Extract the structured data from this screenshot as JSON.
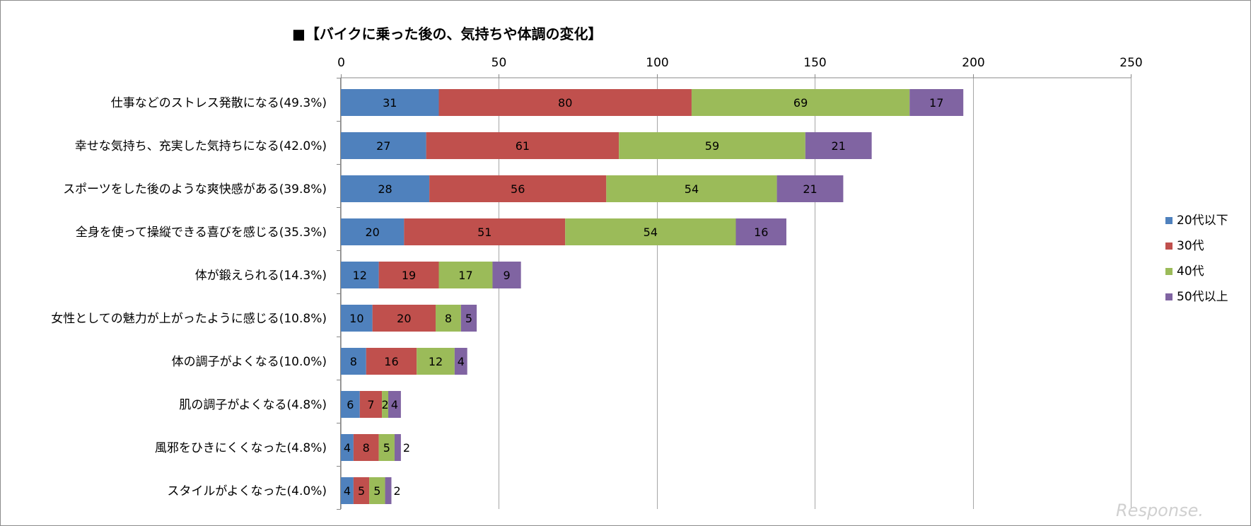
{
  "chart_data": {
    "type": "bar",
    "orientation": "horizontal",
    "stacked": true,
    "title": "■【バイクに乗った後の、気持ちや体調の変化】",
    "xlim": [
      0,
      250
    ],
    "x_ticks": [
      "0",
      "50",
      "100",
      "150",
      "200",
      "250"
    ],
    "x_tick_values": [
      0,
      50,
      100,
      150,
      200,
      250
    ],
    "grid": true,
    "legend_position": "right",
    "categories": [
      "仕事などのストレス発散になる(49.3%)",
      "幸せな気持ち、充実した気持ちになる(42.0%)",
      "スポーツをした後のような爽快感がある(39.8%)",
      "全身を使って操縦できる喜びを感じる(35.3%)",
      "体が鍛えられる(14.3%)",
      "女性としての魅力が上がったように感じる(10.8%)",
      "体の調子がよくなる(10.0%)",
      "肌の調子がよくなる(4.8%)",
      "風邪をひきにくくなった(4.8%)",
      "スタイルがよくなった(4.0%)"
    ],
    "series": [
      {
        "name": "20代以下",
        "color": "#4f81bd",
        "values": [
          31,
          27,
          28,
          20,
          12,
          10,
          8,
          6,
          4,
          4
        ]
      },
      {
        "name": "30代",
        "color": "#c0504d",
        "values": [
          80,
          61,
          56,
          51,
          19,
          20,
          16,
          7,
          8,
          5
        ]
      },
      {
        "name": "40代",
        "color": "#9bbb59",
        "values": [
          69,
          59,
          54,
          54,
          17,
          8,
          12,
          2,
          5,
          5
        ]
      },
      {
        "name": "50代以上",
        "color": "#8064a2",
        "values": [
          17,
          21,
          21,
          16,
          9,
          5,
          4,
          4,
          2,
          2
        ]
      }
    ]
  },
  "watermark": "Response."
}
